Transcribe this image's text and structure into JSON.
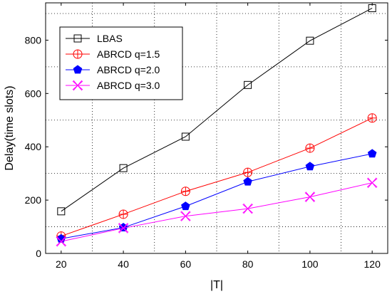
{
  "chart_data": {
    "type": "line",
    "title": "",
    "xlabel": "|T|",
    "ylabel": "Delay(time slots)",
    "xlim": [
      15,
      125
    ],
    "ylim": [
      0,
      940
    ],
    "xticks": [
      20,
      40,
      60,
      80,
      100,
      120
    ],
    "yticks": [
      0,
      200,
      400,
      600,
      800
    ],
    "grid": true,
    "legend_position": "top-left",
    "x": [
      20,
      40,
      60,
      80,
      100,
      120
    ],
    "series": [
      {
        "name": "LBAS",
        "color": "#000000",
        "marker": "square",
        "values": [
          158,
          320,
          438,
          632,
          798,
          920
        ]
      },
      {
        "name": "ABRCD q=1.5",
        "color": "#ff0000",
        "marker": "circle-plus",
        "values": [
          65,
          147,
          233,
          304,
          395,
          508
        ]
      },
      {
        "name": "ABRCD q=2.0",
        "color": "#0000ff",
        "marker": "pentagon",
        "values": [
          55,
          97,
          177,
          269,
          326,
          374
        ]
      },
      {
        "name": "ABRCD q=3.0",
        "color": "#ff00ff",
        "marker": "star",
        "values": [
          45,
          95,
          140,
          168,
          212,
          265
        ]
      }
    ]
  }
}
